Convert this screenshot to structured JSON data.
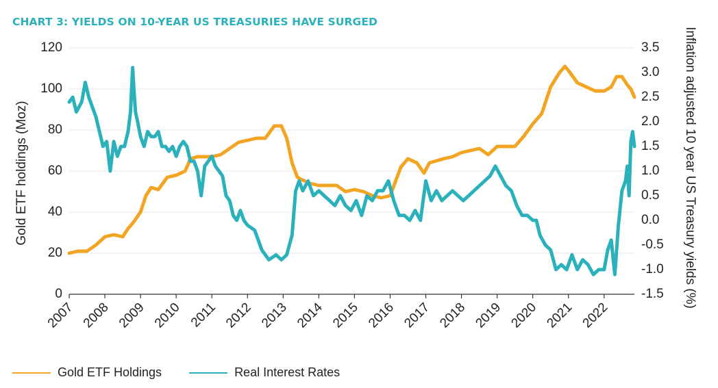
{
  "chart_data": {
    "type": "line",
    "title": "CHART 3: YIELDS ON 10-YEAR US TREASURIES HAVE SURGED",
    "ylabel_left": "Gold ETF holdings (Moz)",
    "ylabel_right": "Inflation adjusted 10 year US Treasury yields (%)",
    "ylim_left": [
      0,
      120
    ],
    "ylim_right": [
      -1.5,
      3.5
    ],
    "yticks_left": [
      "0",
      "20",
      "40",
      "60",
      "80",
      "100",
      "120"
    ],
    "yticks_right": [
      "-1.5",
      "-1.0",
      "-0.5",
      "0.0",
      "0.5",
      "1.0",
      "1.5",
      "2.0",
      "2.5",
      "3.0",
      "3.5"
    ],
    "xlim": [
      2007,
      2022.85
    ],
    "xticks": [
      "2007",
      "2008",
      "2009",
      "2010",
      "2011",
      "2012",
      "2013",
      "2014",
      "2015",
      "2016",
      "2017",
      "2018",
      "2019",
      "2020",
      "2021",
      "2022"
    ],
    "series": [
      {
        "name": "Gold ETF Holdings",
        "axis": "left",
        "color": "#f2a523",
        "x": [
          2007.0,
          2007.25,
          2007.5,
          2007.75,
          2008.0,
          2008.25,
          2008.5,
          2008.65,
          2008.8,
          2009.0,
          2009.15,
          2009.3,
          2009.5,
          2009.75,
          2010.0,
          2010.25,
          2010.4,
          2010.6,
          2010.8,
          2011.0,
          2011.25,
          2011.5,
          2011.75,
          2012.0,
          2012.25,
          2012.5,
          2012.75,
          2012.95,
          2013.1,
          2013.25,
          2013.4,
          2013.5,
          2013.75,
          2014.0,
          2014.25,
          2014.5,
          2014.75,
          2015.0,
          2015.25,
          2015.5,
          2015.75,
          2016.0,
          2016.15,
          2016.3,
          2016.5,
          2016.75,
          2016.95,
          2017.1,
          2017.3,
          2017.5,
          2017.75,
          2018.0,
          2018.25,
          2018.5,
          2018.75,
          2019.0,
          2019.25,
          2019.5,
          2019.75,
          2020.0,
          2020.25,
          2020.5,
          2020.75,
          2020.9,
          2021.0,
          2021.25,
          2021.5,
          2021.75,
          2022.0,
          2022.2,
          2022.35,
          2022.5,
          2022.65,
          2022.75,
          2022.85
        ],
        "values": [
          20,
          21,
          21,
          24,
          28,
          29,
          28,
          32,
          35,
          40,
          48,
          52,
          51,
          57,
          58,
          60,
          66,
          67,
          67,
          67,
          68,
          71,
          74,
          75,
          76,
          76,
          82,
          82,
          76,
          64,
          57,
          56,
          54,
          53,
          53,
          53,
          50,
          51,
          50,
          48,
          47,
          48,
          55,
          62,
          66,
          64,
          59,
          64,
          65,
          66,
          67,
          69,
          70,
          71,
          68,
          72,
          72,
          72,
          77,
          83,
          88,
          101,
          108,
          111,
          109,
          103,
          101,
          99,
          99,
          101,
          106,
          106,
          102,
          100,
          96
        ]
      },
      {
        "name": "Real Interest Rates",
        "axis": "right",
        "color": "#2bb1bb",
        "x": [
          2007.0,
          2007.1,
          2007.2,
          2007.35,
          2007.45,
          2007.55,
          2007.65,
          2007.75,
          2007.85,
          2007.95,
          2008.05,
          2008.15,
          2008.25,
          2008.35,
          2008.45,
          2008.55,
          2008.65,
          2008.72,
          2008.78,
          2008.82,
          2008.86,
          2008.92,
          2009.0,
          2009.1,
          2009.2,
          2009.3,
          2009.4,
          2009.5,
          2009.6,
          2009.7,
          2009.8,
          2009.9,
          2010.0,
          2010.1,
          2010.2,
          2010.3,
          2010.4,
          2010.5,
          2010.6,
          2010.7,
          2010.8,
          2010.9,
          2011.0,
          2011.1,
          2011.2,
          2011.3,
          2011.4,
          2011.5,
          2011.6,
          2011.7,
          2011.8,
          2011.9,
          2012.0,
          2012.2,
          2012.4,
          2012.6,
          2012.8,
          2012.95,
          2013.1,
          2013.25,
          2013.35,
          2013.45,
          2013.55,
          2013.7,
          2013.85,
          2014.0,
          2014.15,
          2014.3,
          2014.45,
          2014.6,
          2014.75,
          2014.9,
          2015.05,
          2015.2,
          2015.35,
          2015.5,
          2015.65,
          2015.8,
          2015.95,
          2016.1,
          2016.25,
          2016.4,
          2016.55,
          2016.7,
          2016.85,
          2017.0,
          2017.15,
          2017.3,
          2017.45,
          2017.6,
          2017.75,
          2017.9,
          2018.05,
          2018.2,
          2018.35,
          2018.5,
          2018.65,
          2018.8,
          2018.95,
          2019.1,
          2019.25,
          2019.4,
          2019.55,
          2019.7,
          2019.85,
          2020.0,
          2020.1,
          2020.2,
          2020.35,
          2020.5,
          2020.65,
          2020.8,
          2020.95,
          2021.1,
          2021.25,
          2021.4,
          2021.55,
          2021.7,
          2021.85,
          2022.0,
          2022.1,
          2022.2,
          2022.3,
          2022.4,
          2022.5,
          2022.6,
          2022.65,
          2022.7,
          2022.75,
          2022.8,
          2022.85
        ],
        "values": [
          2.4,
          2.5,
          2.2,
          2.4,
          2.8,
          2.5,
          2.3,
          2.1,
          1.8,
          1.5,
          1.6,
          1.0,
          1.6,
          1.3,
          1.5,
          1.5,
          1.8,
          2.2,
          3.1,
          2.6,
          2.2,
          2.0,
          1.7,
          1.5,
          1.8,
          1.7,
          1.7,
          1.8,
          1.5,
          1.5,
          1.4,
          1.5,
          1.3,
          1.5,
          1.6,
          1.5,
          1.2,
          1.2,
          1.0,
          0.5,
          1.1,
          1.2,
          1.3,
          1.1,
          1.0,
          0.9,
          0.5,
          0.4,
          0.1,
          0.0,
          0.2,
          0.0,
          -0.1,
          -0.2,
          -0.6,
          -0.8,
          -0.7,
          -0.8,
          -0.7,
          -0.3,
          0.6,
          0.8,
          0.6,
          0.8,
          0.5,
          0.6,
          0.5,
          0.4,
          0.3,
          0.5,
          0.3,
          0.2,
          0.4,
          0.1,
          0.5,
          0.4,
          0.6,
          0.6,
          0.8,
          0.4,
          0.1,
          0.1,
          0.0,
          0.2,
          0.0,
          0.8,
          0.4,
          0.6,
          0.4,
          0.5,
          0.6,
          0.5,
          0.4,
          0.5,
          0.6,
          0.7,
          0.8,
          0.9,
          1.1,
          0.9,
          0.7,
          0.6,
          0.3,
          0.1,
          0.1,
          0.0,
          0.0,
          -0.3,
          -0.5,
          -0.6,
          -1.0,
          -0.9,
          -1.0,
          -0.7,
          -1.0,
          -0.8,
          -0.9,
          -1.1,
          -1.0,
          -1.0,
          -0.6,
          -0.4,
          -1.1,
          -0.1,
          0.6,
          0.8,
          1.1,
          0.5,
          1.6,
          1.8,
          1.5
        ]
      }
    ],
    "legend_position": "bottom-left"
  }
}
